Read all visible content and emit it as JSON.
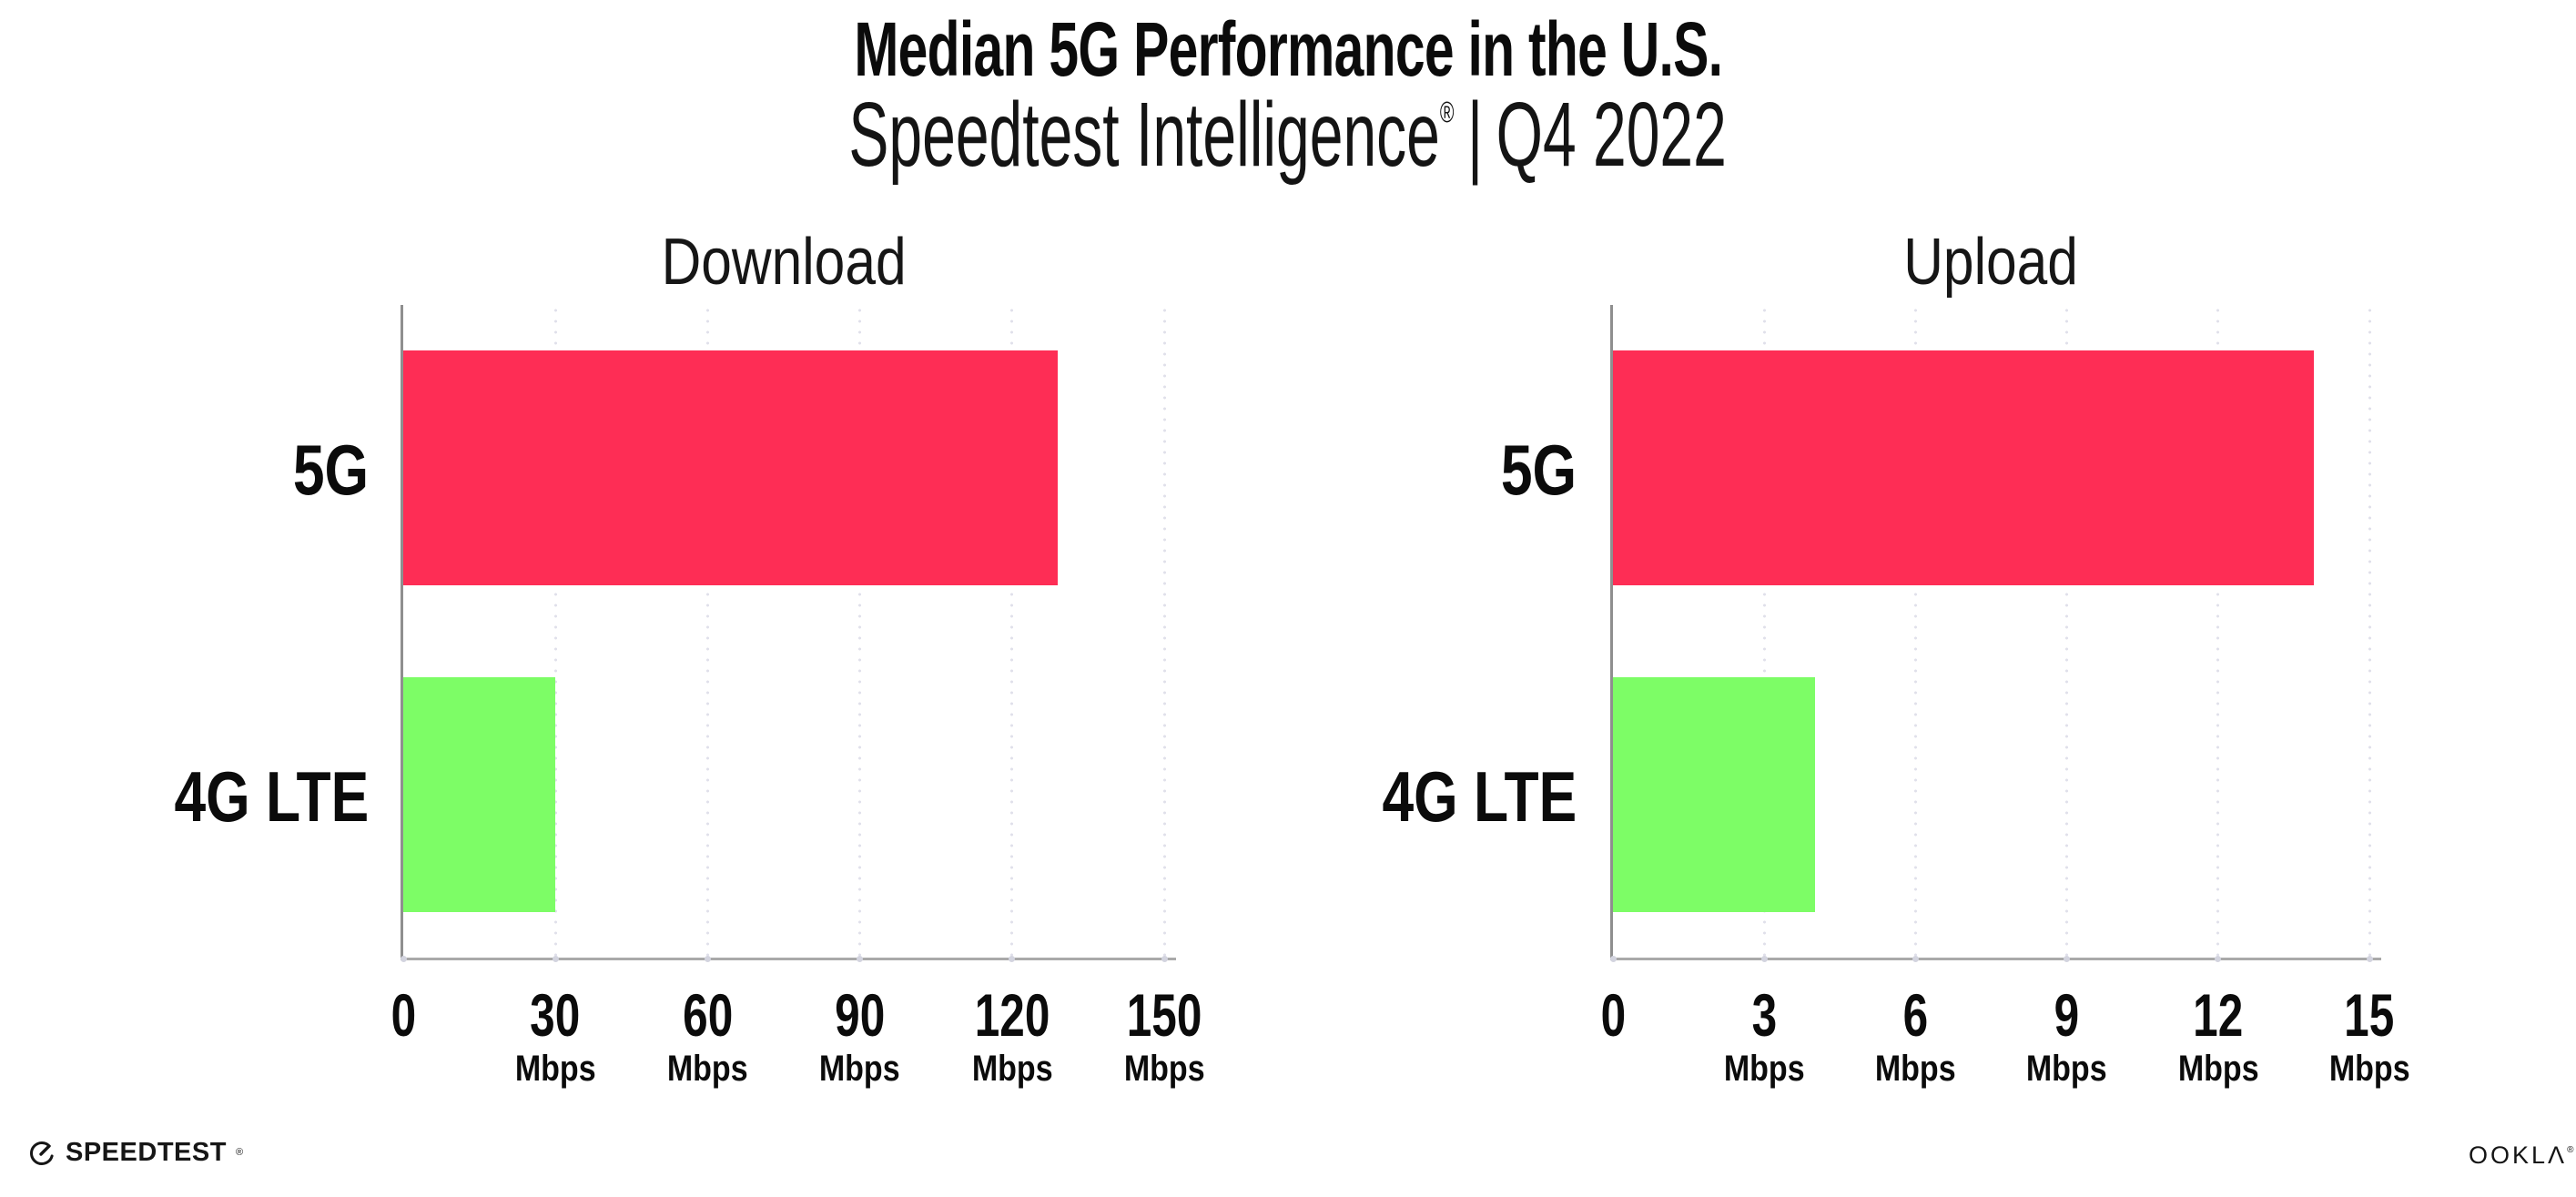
{
  "header": {
    "title": "Median 5G Performance in the U.S.",
    "subtitle_brand": "Speedtest Intelligence",
    "subtitle_reg": "®",
    "subtitle_sep": "|",
    "subtitle_period": "Q4 2022"
  },
  "colors": {
    "bar_5g": "#FE2D55",
    "bar_4g_lte": "#7DFD66",
    "axis_y": "#8f8f8f",
    "axis_x": "#a9a9a9",
    "grid_dots": "#e0e0ea",
    "tick_dots": "#d3d4df",
    "text": "#0b0b0b",
    "background": "#ffffff"
  },
  "chart_data": [
    {
      "type": "bar",
      "orientation": "horizontal",
      "title": "Download",
      "categories": [
        "5G",
        "4G LTE"
      ],
      "values": [
        129,
        30
      ],
      "unit": "Mbps",
      "xlim": [
        0,
        150
      ],
      "ticks": [
        0,
        30,
        60,
        90,
        120,
        150
      ],
      "bar_colors": [
        "#FE2D55",
        "#7DFD66"
      ],
      "grid": "dotted-vertical",
      "legend": "none"
    },
    {
      "type": "bar",
      "orientation": "horizontal",
      "title": "Upload",
      "categories": [
        "5G",
        "4G LTE"
      ],
      "values": [
        13.9,
        4
      ],
      "unit": "Mbps",
      "xlim": [
        0,
        15
      ],
      "ticks": [
        0,
        3,
        6,
        9,
        12,
        15
      ],
      "bar_colors": [
        "#FE2D55",
        "#7DFD66"
      ],
      "grid": "dotted-vertical",
      "legend": "none"
    }
  ],
  "footer": {
    "speedtest_text": "SPEEDTEST",
    "speedtest_mark": "®",
    "ookla_text": "OOKLΛ",
    "ookla_mark": "®"
  }
}
